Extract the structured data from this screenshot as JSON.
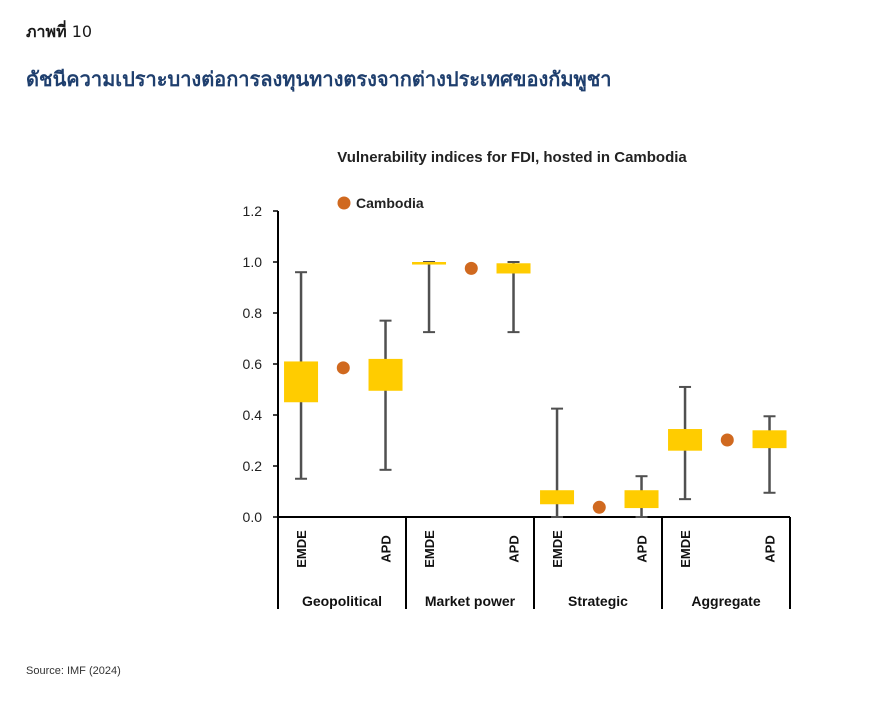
{
  "figure_label": "ภาพที่",
  "figure_number": "10",
  "figure_title": "ดัชนีความเปราะบางต่อการลงทุนทางตรงจากต่างประเทศของกัมพูชา",
  "source": "Source: IMF (2024)",
  "chart_data": {
    "type": "box",
    "title": "Vulnerability indices for FDI, hosted in Cambodia",
    "ylim": [
      0,
      1.2
    ],
    "yticks": [
      "0.0",
      "0.2",
      "0.4",
      "0.6",
      "0.8",
      "1.0",
      "1.2"
    ],
    "legend": {
      "label": "Cambodia",
      "position": "top-left"
    },
    "groups": [
      {
        "name": "Geopolitical",
        "boxes": [
          {
            "label": "EMDE",
            "min": 0.15,
            "q1": 0.45,
            "q3": 0.61,
            "max": 0.96
          },
          {
            "label": "APD",
            "min": 0.185,
            "q1": 0.495,
            "q3": 0.62,
            "max": 0.77
          }
        ],
        "cambodia": 0.585
      },
      {
        "name": "Market power",
        "boxes": [
          {
            "label": "EMDE",
            "min": 0.725,
            "q1": 0.99,
            "q3": 1.0,
            "max": 1.0
          },
          {
            "label": "APD",
            "min": 0.725,
            "q1": 0.955,
            "q3": 0.995,
            "max": 1.0
          }
        ],
        "cambodia": 0.975
      },
      {
        "name": "Strategic",
        "boxes": [
          {
            "label": "EMDE",
            "min": 0.0,
            "q1": 0.05,
            "q3": 0.105,
            "max": 0.425
          },
          {
            "label": "APD",
            "min": 0.0,
            "q1": 0.035,
            "q3": 0.105,
            "max": 0.16
          }
        ],
        "cambodia": 0.038
      },
      {
        "name": "Aggregate",
        "boxes": [
          {
            "label": "EMDE",
            "min": 0.07,
            "q1": 0.26,
            "q3": 0.345,
            "max": 0.51
          },
          {
            "label": "APD",
            "min": 0.095,
            "q1": 0.27,
            "q3": 0.34,
            "max": 0.395
          }
        ],
        "cambodia": 0.302
      }
    ],
    "colors": {
      "box": "#FFCC00",
      "whisker": "#505050",
      "cambodia": "#D0691F",
      "axis": "#000000"
    }
  }
}
